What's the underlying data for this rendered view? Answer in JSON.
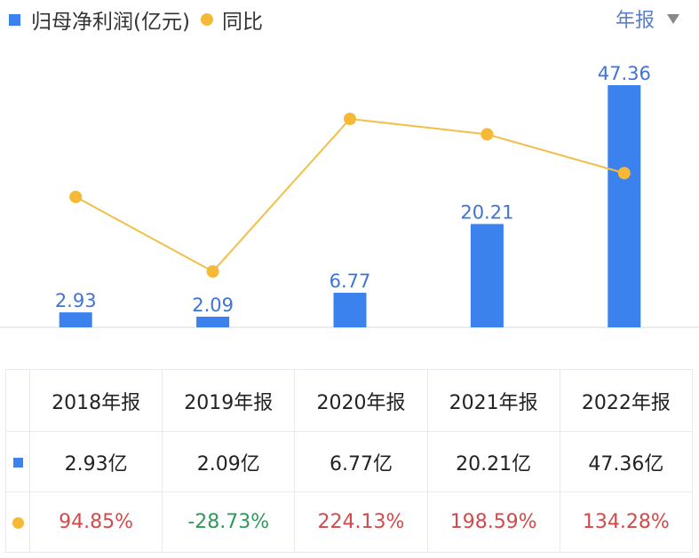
{
  "legend": {
    "bar_label": "归母净利润(亿元)",
    "line_label": "同比"
  },
  "period_selector": {
    "label": "年报"
  },
  "colors": {
    "bar": "#3b82ee",
    "line": "#f0c04a",
    "point": "#f5b935",
    "label": "#3f74d6",
    "positive": "#d24a4a",
    "negative": "#2e9a5a"
  },
  "chart_data": {
    "type": "bar",
    "categories": [
      "2018年报",
      "2019年报",
      "2020年报",
      "2021年报",
      "2022年报"
    ],
    "series": [
      {
        "name": "归母净利润(亿元)",
        "type": "bar",
        "values": [
          2.93,
          2.09,
          6.77,
          20.21,
          47.36
        ]
      },
      {
        "name": "同比",
        "type": "line",
        "values": [
          94.85,
          -28.73,
          224.13,
          198.59,
          134.28
        ]
      }
    ],
    "bar_labels": [
      "2.93",
      "2.09",
      "6.77",
      "20.21",
      "47.36"
    ],
    "legend_position": "top-left"
  },
  "table": {
    "headers": [
      "2018年报",
      "2019年报",
      "2020年报",
      "2021年报",
      "2022年报"
    ],
    "profit_row": [
      "2.93亿",
      "2.09亿",
      "6.77亿",
      "20.21亿",
      "47.36亿"
    ],
    "yoy_row": [
      "94.85%",
      "-28.73%",
      "224.13%",
      "198.59%",
      "134.28%"
    ]
  }
}
